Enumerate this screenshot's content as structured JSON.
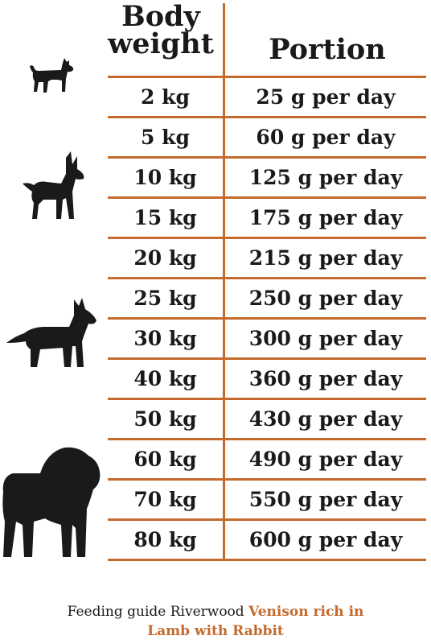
{
  "header": {
    "weight_line1": "Body",
    "weight_line2": "weight",
    "portion": "Portion"
  },
  "rows": [
    {
      "weight": "2 kg",
      "portion": "25 g per day"
    },
    {
      "weight": "5 kg",
      "portion": "60 g per day"
    },
    {
      "weight": "10 kg",
      "portion": "125 g per day"
    },
    {
      "weight": "15 kg",
      "portion": "175 g per day"
    },
    {
      "weight": "20 kg",
      "portion": "215 g per day"
    },
    {
      "weight": "25 kg",
      "portion": "250 g per day"
    },
    {
      "weight": "30 kg",
      "portion": "300 g per day"
    },
    {
      "weight": "40 kg",
      "portion": "360 g per day"
    },
    {
      "weight": "50 kg",
      "portion": "430 g per day"
    },
    {
      "weight": "60 kg",
      "portion": "490 g per day"
    },
    {
      "weight": "70 kg",
      "portion": "550 g per day"
    },
    {
      "weight": "80 kg",
      "portion": "600 g per day"
    }
  ],
  "footer": {
    "prefix": "Feeding guide Riverwood ",
    "highlight_line1": "Venison rich in",
    "highlight_line2": "Lamb with Rabbit"
  },
  "icons": [
    "small-dog-icon",
    "medium-dog-icon",
    "large-dog-icon",
    "giant-dog-icon"
  ],
  "colors": {
    "accent": "#c56a2d",
    "text": "#1a1a1a",
    "background": "#ffffff"
  }
}
